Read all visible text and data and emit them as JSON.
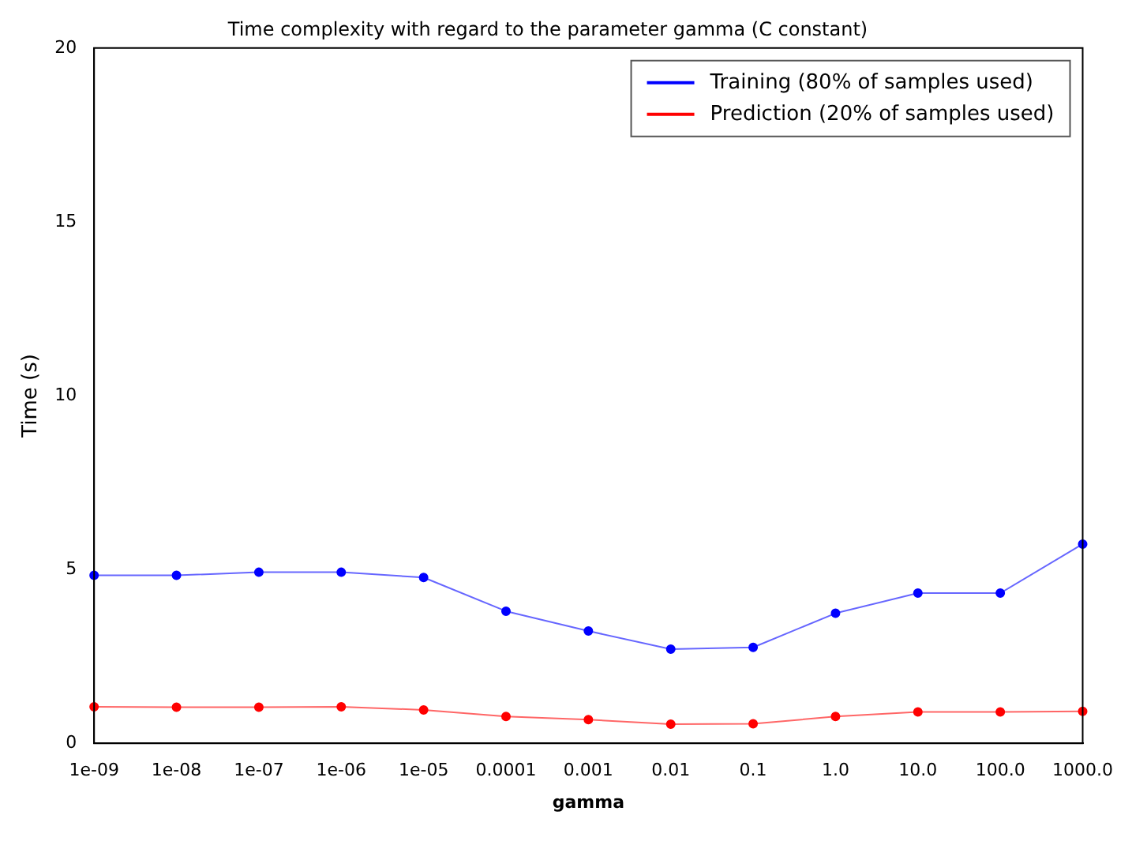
{
  "chart_data": {
    "type": "line",
    "title": "Time complexity with regard to the parameter gamma (C constant)",
    "xlabel": "gamma",
    "ylabel": "Time (s)",
    "categories": [
      "1e-09",
      "1e-08",
      "1e-07",
      "1e-06",
      "1e-05",
      "0.0001",
      "0.001",
      "0.01",
      "0.1",
      "1.0",
      "10.0",
      "100.0",
      "1000.0"
    ],
    "series": [
      {
        "name": "Training (80% of samples used)",
        "color": "#0000ff",
        "values": [
          4.83,
          4.83,
          4.92,
          4.92,
          4.77,
          3.8,
          3.23,
          2.71,
          2.76,
          3.74,
          4.32,
          4.32,
          5.73
        ]
      },
      {
        "name": "Prediction (20% of samples used)",
        "color": "#ff0000",
        "values": [
          1.05,
          1.04,
          1.04,
          1.05,
          0.96,
          0.77,
          0.68,
          0.55,
          0.56,
          0.77,
          0.9,
          0.9,
          0.92
        ]
      }
    ],
    "ylim": [
      0,
      20
    ],
    "yticks": [
      0,
      5,
      10,
      15,
      20
    ],
    "grid": false,
    "legend": "top right",
    "marker": "circle",
    "line_style": "solid"
  }
}
